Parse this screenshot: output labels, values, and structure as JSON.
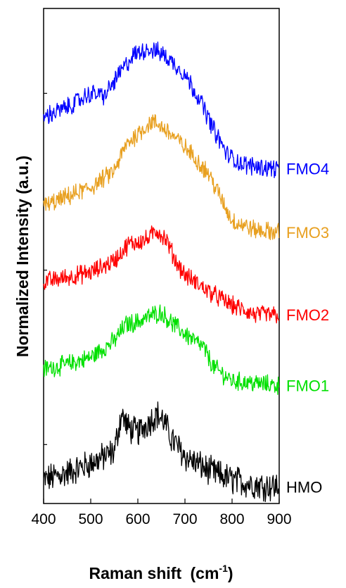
{
  "chart_data": {
    "type": "line",
    "xlabel": "Raman shift",
    "xlabel_unit_base": "(cm",
    "xlabel_unit_sup": "-1",
    "xlabel_unit_close": ")",
    "ylabel": "Normalized Intensity (a.u.)",
    "xlim": [
      400,
      900
    ],
    "x_ticks": [
      "400",
      "500",
      "600",
      "700",
      "800",
      "900"
    ],
    "y_tick_labels_shown": false,
    "grid": false,
    "legend": "right-of-plot, series labels next to traces",
    "series": [
      {
        "name": "HMO",
        "color": "#000000",
        "x": [
          400,
          450,
          500,
          530,
          550,
          565,
          580,
          600,
          620,
          640,
          655,
          670,
          700,
          750,
          800,
          850,
          900
        ],
        "y": [
          0.1,
          0.13,
          0.17,
          0.2,
          0.22,
          0.38,
          0.32,
          0.3,
          0.34,
          0.38,
          0.35,
          0.28,
          0.2,
          0.14,
          0.1,
          0.08,
          0.07
        ]
      },
      {
        "name": "FMO1",
        "color": "#00e000",
        "x": [
          400,
          450,
          500,
          550,
          575,
          600,
          630,
          650,
          670,
          700,
          740,
          760,
          800,
          850,
          900
        ],
        "y": [
          0.57,
          0.59,
          0.62,
          0.69,
          0.76,
          0.77,
          0.8,
          0.81,
          0.77,
          0.72,
          0.66,
          0.58,
          0.52,
          0.51,
          0.5
        ]
      },
      {
        "name": "FMO2",
        "color": "#ff0000",
        "x": [
          400,
          450,
          500,
          550,
          580,
          620,
          640,
          660,
          680,
          700,
          750,
          800,
          850,
          900
        ],
        "y": [
          0.94,
          0.96,
          0.98,
          1.03,
          1.1,
          1.12,
          1.16,
          1.12,
          1.03,
          0.97,
          0.9,
          0.84,
          0.8,
          0.8
        ]
      },
      {
        "name": "FMO3",
        "color": "#e8a020",
        "x": [
          400,
          450,
          500,
          550,
          575,
          600,
          630,
          650,
          680,
          720,
          750,
          780,
          800,
          850,
          900
        ],
        "y": [
          1.26,
          1.3,
          1.34,
          1.41,
          1.52,
          1.57,
          1.62,
          1.6,
          1.55,
          1.47,
          1.4,
          1.28,
          1.2,
          1.16,
          1.15
        ]
      },
      {
        "name": "FMO4",
        "color": "#0000ff",
        "x": [
          400,
          450,
          500,
          530,
          560,
          590,
          620,
          650,
          680,
          700,
          730,
          760,
          790,
          820,
          850,
          900
        ],
        "y": [
          1.64,
          1.68,
          1.74,
          1.73,
          1.82,
          1.9,
          1.93,
          1.91,
          1.86,
          1.82,
          1.72,
          1.59,
          1.48,
          1.44,
          1.43,
          1.42
        ]
      }
    ]
  }
}
